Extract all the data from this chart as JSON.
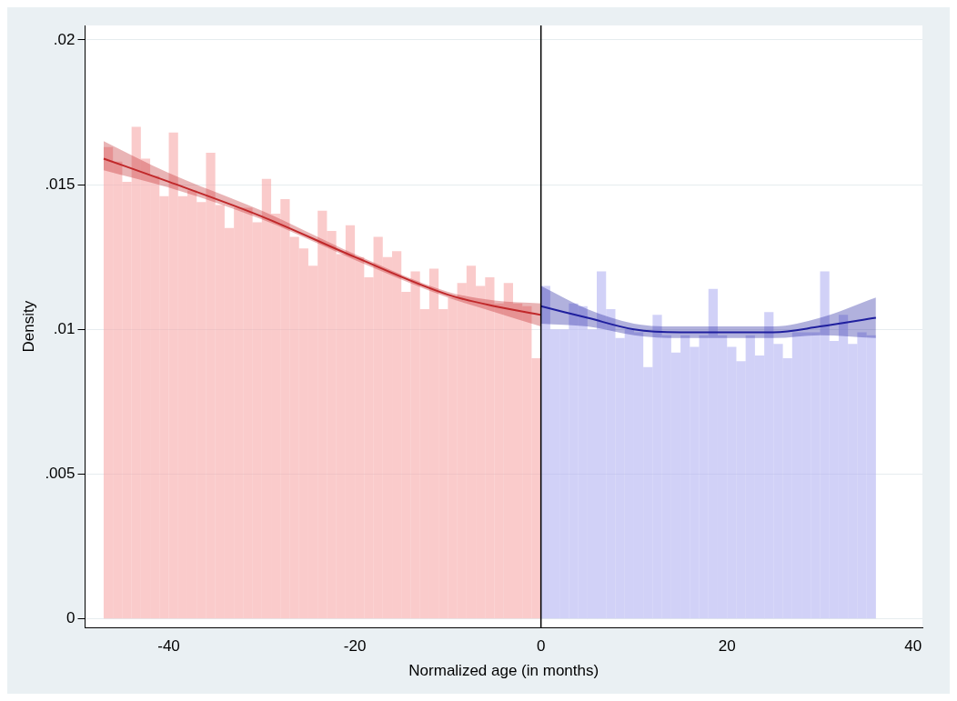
{
  "chart_data": {
    "type": "histogram",
    "xlabel": "Normalized age (in months)",
    "ylabel": "Density",
    "xlim": [
      -49,
      41
    ],
    "xticks": [
      -40,
      -20,
      0,
      20,
      40
    ],
    "ylim": [
      -0.0003,
      0.0205
    ],
    "yticks": [
      {
        "value": 0,
        "label": "0"
      },
      {
        "value": 0.005,
        "label": ".005"
      },
      {
        "value": 0.01,
        "label": ".01"
      },
      {
        "value": 0.015,
        "label": ".015"
      },
      {
        "value": 0.02,
        "label": ".02"
      }
    ],
    "grid": "y",
    "legend": false,
    "ref_lines": [
      {
        "axis": "x",
        "value": 0,
        "color": "#000000"
      }
    ],
    "series": [
      {
        "type": "histogram",
        "color": "#f7a8a8",
        "bins": [
          -47,
          -46,
          -45,
          -44,
          -43,
          -42,
          -41,
          -40,
          -39,
          -38,
          -37,
          -36,
          -35,
          -34,
          -33,
          -32,
          -31,
          -30,
          -29,
          -28,
          -27,
          -26,
          -25,
          -24,
          -23,
          -22,
          -21,
          -20,
          -19,
          -18,
          -17,
          -16,
          -15,
          -14,
          -13,
          -12,
          -11,
          -10,
          -9,
          -8,
          -7,
          -6,
          -5,
          -4,
          -3,
          -2,
          -1,
          0
        ],
        "values": [
          0.0163,
          0.0158,
          0.0151,
          0.017,
          0.0159,
          0.0153,
          0.0146,
          0.0168,
          0.0146,
          0.0148,
          0.0144,
          0.0161,
          0.0143,
          0.0135,
          0.0142,
          0.0142,
          0.0137,
          0.0152,
          0.014,
          0.0145,
          0.0132,
          0.0128,
          0.0122,
          0.0141,
          0.0134,
          0.0126,
          0.0136,
          0.0125,
          0.0118,
          0.0132,
          0.0125,
          0.0127,
          0.0113,
          0.012,
          0.0107,
          0.0121,
          0.0107,
          0.0111,
          0.0116,
          0.0122,
          0.0115,
          0.0118,
          0.0109,
          0.0116,
          0.0109,
          0.0108,
          0.009
        ]
      },
      {
        "type": "histogram",
        "color": "#b3b3f2",
        "bins": [
          0,
          1,
          2,
          3,
          4,
          5,
          6,
          7,
          8,
          9,
          10,
          11,
          12,
          13,
          14,
          15,
          16,
          17,
          18,
          19,
          20,
          21,
          22,
          23,
          24,
          25,
          26,
          27,
          28,
          29,
          30,
          31,
          32,
          33,
          34,
          35,
          36
        ],
        "values": [
          0.0115,
          0.01,
          0.01,
          0.0109,
          0.0108,
          0.01,
          0.012,
          0.0107,
          0.0097,
          0.01,
          0.0099,
          0.0087,
          0.0105,
          0.0098,
          0.0092,
          0.0098,
          0.0094,
          0.0098,
          0.0114,
          0.0098,
          0.0094,
          0.0089,
          0.0098,
          0.0091,
          0.0106,
          0.0095,
          0.009,
          0.0099,
          0.0099,
          0.0099,
          0.012,
          0.0096,
          0.0105,
          0.0095,
          0.0099,
          0.0098
        ]
      },
      {
        "type": "line",
        "color": "#c0282a",
        "x": [
          -47,
          -40,
          -30,
          -20,
          -10,
          -5,
          0
        ],
        "values": [
          0.0159,
          0.0151,
          0.0139,
          0.0125,
          0.0112,
          0.0108,
          0.0105
        ],
        "lower": [
          0.0155,
          0.0149,
          0.0138,
          0.0124,
          0.0111,
          0.0106,
          0.0101
        ],
        "upper": [
          0.0165,
          0.0154,
          0.0141,
          0.0126,
          0.0113,
          0.011,
          0.0109
        ]
      },
      {
        "type": "line",
        "color": "#1f1f9e",
        "x": [
          0,
          5,
          10,
          15,
          20,
          25,
          30,
          36
        ],
        "values": [
          0.0108,
          0.0104,
          0.01,
          0.0099,
          0.0099,
          0.0099,
          0.0101,
          0.0104
        ],
        "lower": [
          0.0102,
          0.0101,
          0.0098,
          0.0097,
          0.0097,
          0.0097,
          0.0098,
          0.0097
        ],
        "upper": [
          0.0115,
          0.0107,
          0.0102,
          0.0101,
          0.0101,
          0.0101,
          0.0104,
          0.0111
        ]
      }
    ]
  }
}
